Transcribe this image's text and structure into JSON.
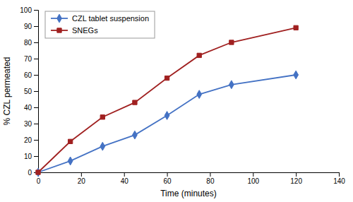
{
  "chart_data": {
    "type": "line",
    "x": [
      0,
      15,
      30,
      45,
      60,
      75,
      90,
      120
    ],
    "series": [
      {
        "name": "CZL tablet suspension",
        "color": "#4472c4",
        "marker": "diamond",
        "values": [
          0,
          7,
          16,
          23,
          35,
          48,
          54,
          60
        ]
      },
      {
        "name": "SNEGs",
        "color": "#a02020",
        "marker": "square",
        "values": [
          0,
          19,
          34,
          43,
          58,
          72,
          80,
          89
        ]
      }
    ],
    "xlabel": "Time (minutes)",
    "ylabel": "% CZL permeated",
    "xlim": [
      0,
      140
    ],
    "ylim": [
      0,
      100
    ],
    "xticks": [
      0,
      20,
      40,
      60,
      80,
      100,
      120,
      140
    ],
    "yticks": [
      0,
      10,
      20,
      30,
      40,
      50,
      60,
      70,
      80,
      90,
      100
    ],
    "legend": "upper left"
  }
}
